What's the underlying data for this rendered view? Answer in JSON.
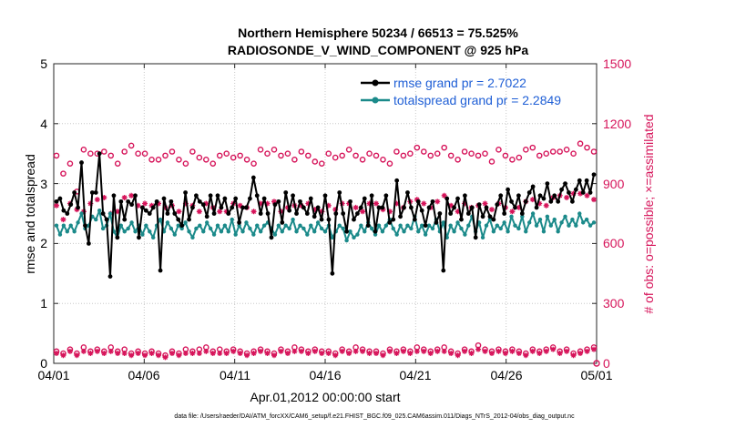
{
  "chart_data": {
    "type": "line",
    "title": "Northern Hemisphere 50234 / 66513 = 75.525%",
    "subtitle": "RADIOSONDE_V_WIND_COMPONENT @ 925 hPa",
    "xlabel": "Apr.01,2012 00:00:00 start",
    "ylabel": "rmse and totalspread",
    "ylabel_right": "# of obs: o=possible; ×=assimilated",
    "ylim": [
      0,
      5
    ],
    "ylim_right": [
      0,
      1500
    ],
    "x_tick_labels": [
      "04/01",
      "04/06",
      "04/11",
      "04/16",
      "04/21",
      "04/26",
      "05/01"
    ],
    "y_ticks": [
      "0",
      "1",
      "2",
      "3",
      "4",
      "5"
    ],
    "y_ticks_right": [
      "0",
      "300",
      "600",
      "900",
      "1200",
      "1500"
    ],
    "legend": [
      "rmse grand pr = 2.7022",
      "totalspread grand pr = 2.2849"
    ],
    "series": [
      {
        "name": "rmse",
        "color": "#000000",
        "values": [
          2.7,
          2.75,
          2.55,
          2.5,
          2.65,
          2.85,
          2.6,
          3.35,
          2.3,
          2.0,
          2.85,
          2.85,
          3.5,
          2.5,
          2.4,
          1.45,
          2.8,
          2.1,
          2.7,
          2.4,
          2.7,
          2.65,
          2.8,
          2.1,
          2.6,
          2.55,
          2.5,
          2.6,
          2.7,
          1.55,
          2.75,
          2.5,
          2.7,
          2.5,
          2.4,
          2.3,
          2.85,
          2.4,
          2.6,
          2.8,
          2.7,
          2.65,
          2.45,
          2.8,
          2.5,
          2.8,
          2.6,
          2.75,
          2.5,
          2.6,
          2.75,
          2.35,
          2.6,
          2.6,
          2.75,
          3.1,
          2.8,
          2.5,
          2.75,
          2.5,
          2.1,
          2.65,
          2.7,
          2.35,
          2.85,
          2.55,
          2.8,
          2.5,
          2.7,
          2.6,
          2.5,
          2.75,
          2.45,
          2.6,
          2.4,
          2.8,
          2.4,
          1.5,
          2.5,
          2.85,
          2.5,
          2.2,
          2.7,
          2.4,
          2.5,
          2.6,
          2.75,
          2.3,
          2.8,
          2.2,
          2.6,
          2.6,
          2.8,
          2.35,
          2.4,
          3.05,
          2.45,
          2.6,
          2.85,
          2.6,
          2.4,
          2.7,
          2.55,
          2.3,
          2.6,
          2.7,
          2.35,
          2.5,
          1.55,
          2.75,
          2.5,
          2.6,
          2.75,
          2.4,
          2.8,
          2.5,
          2.6,
          2.1,
          2.65,
          2.45,
          2.6,
          2.45,
          2.4,
          2.65,
          2.8,
          2.5,
          2.9,
          2.7,
          2.6,
          2.8,
          2.5,
          2.7,
          2.85,
          2.95,
          2.6,
          2.8,
          2.75,
          3.0,
          2.7,
          2.8,
          2.7,
          2.9,
          3.0,
          2.85,
          2.7,
          2.9,
          3.05,
          2.85,
          3.05,
          2.85,
          3.15
        ]
      },
      {
        "name": "totalspread",
        "color": "#1b8a8a",
        "values": [
          2.3,
          2.15,
          2.3,
          2.2,
          2.3,
          2.2,
          2.35,
          2.5,
          2.25,
          2.3,
          2.45,
          2.4,
          2.55,
          2.25,
          2.3,
          2.5,
          2.2,
          2.1,
          2.3,
          2.2,
          2.25,
          2.35,
          2.2,
          2.3,
          2.15,
          2.3,
          2.2,
          2.1,
          2.3,
          2.4,
          2.2,
          2.35,
          2.25,
          2.15,
          2.3,
          2.25,
          2.35,
          2.2,
          2.1,
          2.25,
          2.3,
          2.2,
          2.35,
          2.25,
          2.15,
          2.3,
          2.2,
          2.3,
          2.2,
          2.4,
          2.15,
          2.3,
          2.2,
          2.35,
          2.25,
          2.15,
          2.3,
          2.2,
          2.3,
          2.35,
          2.25,
          2.15,
          2.3,
          2.2,
          2.3,
          2.25,
          2.4,
          2.2,
          2.3,
          2.25,
          2.15,
          2.3,
          2.2,
          2.35,
          2.25,
          2.2,
          2.3,
          2.1,
          2.2,
          2.3,
          2.25,
          2.05,
          2.2,
          2.1,
          2.15,
          2.3,
          2.2,
          2.35,
          2.25,
          2.15,
          2.3,
          2.2,
          2.3,
          2.4,
          2.25,
          2.15,
          2.3,
          2.2,
          2.3,
          2.25,
          2.45,
          2.2,
          2.3,
          2.15,
          2.3,
          2.25,
          2.4,
          2.2,
          2.35,
          2.1,
          2.3,
          2.2,
          2.35,
          2.25,
          2.15,
          2.3,
          2.45,
          2.2,
          2.35,
          2.1,
          2.3,
          2.4,
          2.2,
          2.3,
          2.25,
          2.35,
          2.2,
          2.45,
          2.3,
          2.25,
          2.45,
          2.2,
          2.35,
          2.5,
          2.3,
          2.4,
          2.2,
          2.45,
          2.3,
          2.4,
          2.2,
          2.35,
          2.45,
          2.3,
          2.4,
          2.3,
          2.5,
          2.35,
          2.4,
          2.3,
          2.35
        ]
      },
      {
        "name": "possible",
        "color": "#d6145a",
        "values": [
          1040,
          950,
          1000,
          860,
          1070,
          1050,
          1050,
          1060,
          1040,
          1000,
          1060,
          1090,
          1050,
          1050,
          1020,
          1020,
          1040,
          1060,
          1020,
          1000,
          1060,
          1030,
          1020,
          1000,
          1040,
          1050,
          1030,
          1040,
          1020,
          1000,
          1070,
          1050,
          1070,
          1040,
          1050,
          1020,
          1060,
          1040,
          1010,
          1000,
          1050,
          1030,
          1040,
          1070,
          1040,
          1020,
          1050,
          1040,
          1020,
          1000,
          1060,
          1040,
          1050,
          1080,
          1060,
          1040,
          1050,
          1080,
          1040,
          1020,
          1060,
          1050,
          1040,
          1050,
          1010,
          1070,
          1040,
          1020,
          1030,
          1070,
          1080,
          1040,
          1050,
          1060,
          1060,
          1070,
          1050,
          1100,
          1080,
          1060
        ]
      },
      {
        "name": "assimilated",
        "color": "#d6145a",
        "values": [
          790,
          720,
          800,
          770,
          760,
          800,
          820,
          830,
          750,
          760,
          830,
          840,
          790,
          800,
          790,
          800,
          780,
          790,
          760,
          800,
          790,
          760,
          800,
          780,
          760,
          760,
          800,
          790,
          780,
          760,
          800,
          800,
          810,
          760,
          780,
          790,
          790,
          800,
          770,
          760,
          790,
          770,
          800,
          800,
          780,
          760,
          800,
          800,
          770,
          760,
          800,
          780,
          810,
          820,
          800,
          780,
          810,
          840,
          790,
          760,
          800,
          780,
          790,
          800,
          770,
          800,
          780,
          760,
          780,
          810,
          820,
          800,
          790,
          830,
          840,
          830,
          850,
          850,
          840,
          820
        ]
      },
      {
        "name": "possible_low",
        "color": "#d6145a",
        "values": [
          60,
          50,
          70,
          50,
          80,
          60,
          70,
          60,
          80,
          60,
          70,
          50,
          60,
          50,
          60,
          50,
          40,
          60,
          50,
          70,
          60,
          70,
          80,
          60,
          70,
          60,
          70,
          60,
          50,
          60,
          70,
          60,
          50,
          70,
          60,
          80,
          70,
          60,
          70,
          60,
          60,
          50,
          70,
          60,
          80,
          70,
          60,
          60,
          50,
          70,
          60,
          70,
          60,
          80,
          70,
          60,
          70,
          80,
          60,
          50,
          70,
          60,
          90,
          70,
          60,
          70,
          60,
          70,
          60,
          50,
          70,
          60,
          70,
          80,
          60,
          70,
          50,
          60,
          70,
          80
        ]
      },
      {
        "name": "assimilated_low",
        "color": "#d6145a",
        "values": [
          50,
          40,
          60,
          40,
          60,
          50,
          60,
          50,
          60,
          50,
          50,
          40,
          50,
          40,
          50,
          40,
          30,
          50,
          40,
          50,
          50,
          50,
          60,
          50,
          50,
          50,
          60,
          50,
          40,
          50,
          60,
          50,
          40,
          60,
          50,
          60,
          60,
          50,
          60,
          50,
          50,
          40,
          60,
          50,
          60,
          60,
          50,
          50,
          40,
          60,
          50,
          60,
          50,
          60,
          60,
          50,
          60,
          60,
          50,
          40,
          60,
          50,
          70,
          60,
          50,
          60,
          50,
          60,
          50,
          40,
          60,
          50,
          60,
          70,
          50,
          60,
          40,
          50,
          60,
          70
        ]
      }
    ]
  },
  "footer": "data file: /Users/raeder/DAI/ATM_forcXX/CAM6_setup/f.e21.FHIST_BGC.f09_025.CAM6assim.011/Diags_NTrS_2012-04/obs_diag_output.nc",
  "colors": {
    "rmse": "#000000",
    "spread": "#1b8a8a",
    "obs": "#d6145a",
    "legend_text": "#1f5fd6"
  }
}
